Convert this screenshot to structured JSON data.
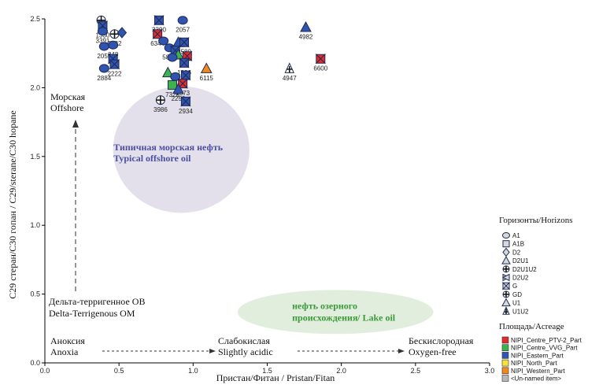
{
  "chart_data": {
    "type": "scatter",
    "xlabel": "Пристан/Фитан  / Pristan/Fitan",
    "ylabel": "C29 стеран/C30 гопан  / C29/sterane/C30 hopane",
    "xlim": [
      0,
      3.0
    ],
    "ylim": [
      0,
      2.5
    ],
    "x_ticks": [
      0,
      0.5,
      1.0,
      1.5,
      2.0,
      2.5,
      3.0
    ],
    "x_tick_labels": [
      "0.0",
      "0.5",
      "1.0",
      "1.5",
      "2.0",
      "2.5",
      "3.0"
    ],
    "y_ticks": [
      0,
      0.5,
      1.0,
      1.5,
      2.0,
      2.5
    ],
    "y_tick_labels": [
      "0.0",
      "0.5",
      "1.0",
      "1.5",
      "2.0",
      "2.5"
    ],
    "regions": [
      {
        "name": "typical-offshore-oil",
        "label_ru": "Типичная морская нефть",
        "label_en": "Typical offshore oil",
        "cx": 0.92,
        "cy": 1.55,
        "rx": 0.46,
        "ry": 0.46,
        "color": "#e3e0ec",
        "text_color": "#4a4fa0"
      },
      {
        "name": "lake-oil",
        "label_ru": "нефть озерного",
        "label_ru2": "происхождения",
        "label_en": "/ Lake oil",
        "cx": 1.96,
        "cy": 0.37,
        "rx": 0.66,
        "ry": 0.16,
        "color": "#e2eedd",
        "text_color": "#3a9a3a"
      }
    ],
    "annotations": {
      "offshore_ru": "Морская",
      "offshore_en": "Offshore",
      "delta_ru": "Дельта-терригенное ОВ",
      "delta_en": "Delta-Terrigenous OM",
      "anoxia_ru": "Аноксия",
      "anoxia_en": "Anoxia",
      "slightly_acidic_ru": "Слабокислая",
      "slightly_acidic_en": "Slightly acidic",
      "oxygen_free_ru": "Бескислородная",
      "oxygen_free_en": "Oxygen-free"
    },
    "points": [
      {
        "x": 0.38,
        "y": 2.49,
        "label": "",
        "marker": "crosscircle",
        "color": "#ffffff"
      },
      {
        "x": 0.39,
        "y": 2.45,
        "label": "1330",
        "marker": "bowtie",
        "color": "#2f55b0"
      },
      {
        "x": 0.39,
        "y": 2.41,
        "label": "3391",
        "marker": "circle",
        "color": "#2f55b0"
      },
      {
        "x": 0.47,
        "y": 2.39,
        "label": "3982",
        "marker": "crosscircle",
        "color": "#ffffff"
      },
      {
        "x": 0.52,
        "y": 2.4,
        "label": "",
        "marker": "diamond",
        "color": "#2f55b0"
      },
      {
        "x": 0.46,
        "y": 2.31,
        "label": "348",
        "marker": "circle",
        "color": "#2f55b0"
      },
      {
        "x": 0.4,
        "y": 2.3,
        "label": "2055",
        "marker": "circle",
        "color": "#2f55b0"
      },
      {
        "x": 0.46,
        "y": 2.21,
        "label": "",
        "marker": "bowtie",
        "color": "#2f55b0"
      },
      {
        "x": 0.47,
        "y": 2.17,
        "label": "2222",
        "marker": "bowtie",
        "color": "#2f55b0"
      },
      {
        "x": 0.4,
        "y": 2.14,
        "label": "2884",
        "marker": "circle",
        "color": "#2f55b0"
      },
      {
        "x": 0.77,
        "y": 2.49,
        "label": "3390",
        "marker": "bowtie",
        "color": "#2f55b0"
      },
      {
        "x": 0.93,
        "y": 2.49,
        "label": "2057",
        "marker": "circle",
        "color": "#2f55b0"
      },
      {
        "x": 0.76,
        "y": 2.39,
        "label": "6344",
        "marker": "bowtie",
        "color": "#e22b2b"
      },
      {
        "x": 0.8,
        "y": 2.34,
        "label": "",
        "marker": "circle",
        "color": "#2f55b0"
      },
      {
        "x": 0.9,
        "y": 2.33,
        "label": "",
        "marker": "triangle",
        "color": "#2f55b0"
      },
      {
        "x": 0.94,
        "y": 2.33,
        "label": "3580",
        "marker": "bowtie",
        "color": "#2f55b0"
      },
      {
        "x": 0.84,
        "y": 2.29,
        "label": "5849",
        "marker": "circle",
        "color": "#2f55b0"
      },
      {
        "x": 0.88,
        "y": 2.27,
        "label": "",
        "marker": "bowtie",
        "color": "#2f55b0"
      },
      {
        "x": 0.9,
        "y": 2.24,
        "label": "",
        "marker": "triangle",
        "color": "#3cb44b"
      },
      {
        "x": 0.96,
        "y": 2.23,
        "label": "",
        "marker": "bowtie",
        "color": "#e22b2b"
      },
      {
        "x": 0.86,
        "y": 2.22,
        "label": "",
        "marker": "circle",
        "color": "#2f55b0"
      },
      {
        "x": 0.94,
        "y": 2.18,
        "label": "1936",
        "marker": "bowtie",
        "color": "#2f55b0"
      },
      {
        "x": 0.83,
        "y": 2.11,
        "label": "",
        "marker": "triangle",
        "color": "#3cb44b"
      },
      {
        "x": 0.88,
        "y": 2.08,
        "label": "2230",
        "marker": "circle",
        "color": "#2f55b0"
      },
      {
        "x": 0.95,
        "y": 2.09,
        "label": "",
        "marker": "bowtie",
        "color": "#2f55b0"
      },
      {
        "x": 0.93,
        "y": 2.03,
        "label": "1373",
        "marker": "bowtie",
        "color": "#e22b2b"
      },
      {
        "x": 0.86,
        "y": 2.02,
        "label": "7326",
        "marker": "square",
        "color": "#3cb44b"
      },
      {
        "x": 0.9,
        "y": 1.99,
        "label": "2250",
        "marker": "triangle",
        "color": "#2f55b0"
      },
      {
        "x": 0.95,
        "y": 1.9,
        "label": "2934",
        "marker": "bowtie",
        "color": "#2f55b0"
      },
      {
        "x": 0.78,
        "y": 1.91,
        "label": "3986",
        "marker": "crosscircle",
        "color": "#ffffff"
      },
      {
        "x": 1.09,
        "y": 2.14,
        "label": "6115",
        "marker": "triangle",
        "color": "#f08a1c"
      },
      {
        "x": 1.76,
        "y": 2.44,
        "label": "4982",
        "marker": "triangle",
        "color": "#2f55b0"
      },
      {
        "x": 1.65,
        "y": 2.14,
        "label": "4947",
        "marker": "U1U2",
        "color": "#ffffff"
      },
      {
        "x": 1.86,
        "y": 2.21,
        "label": "6600",
        "marker": "bowtie",
        "color": "#e22b2b"
      }
    ],
    "legend_horizons": {
      "title": "Горизонты/Horizons",
      "items": [
        {
          "label": "A1",
          "marker": "circle"
        },
        {
          "label": "A1B",
          "marker": "square"
        },
        {
          "label": "D2",
          "marker": "diamond"
        },
        {
          "label": "D2U1",
          "marker": "triangle"
        },
        {
          "label": "D2U1U2",
          "marker": "crosscircle"
        },
        {
          "label": "D2U2",
          "marker": "bowtie-left"
        },
        {
          "label": "G",
          "marker": "bowtie"
        },
        {
          "label": "GD",
          "marker": "crosscircle"
        },
        {
          "label": "U1",
          "marker": "triangle"
        },
        {
          "label": "U1U2",
          "marker": "U1U2"
        }
      ]
    },
    "legend_acreage": {
      "title": "Площадь/Acreage",
      "items": [
        {
          "label": "NIPI_Centre_PTV-2_Part",
          "color": "#e22b2b"
        },
        {
          "label": "NIPI_Centre_VVG_Part",
          "color": "#3cb44b"
        },
        {
          "label": "NIPI_Eastern_Part",
          "color": "#2f55b0"
        },
        {
          "label": "NIPI_North_Part",
          "color": "#f5e23a"
        },
        {
          "label": "NIPI_Western_Part",
          "color": "#f08a1c"
        },
        {
          "label": "<Un-named item>",
          "color": "#b8b8b8"
        }
      ]
    }
  }
}
